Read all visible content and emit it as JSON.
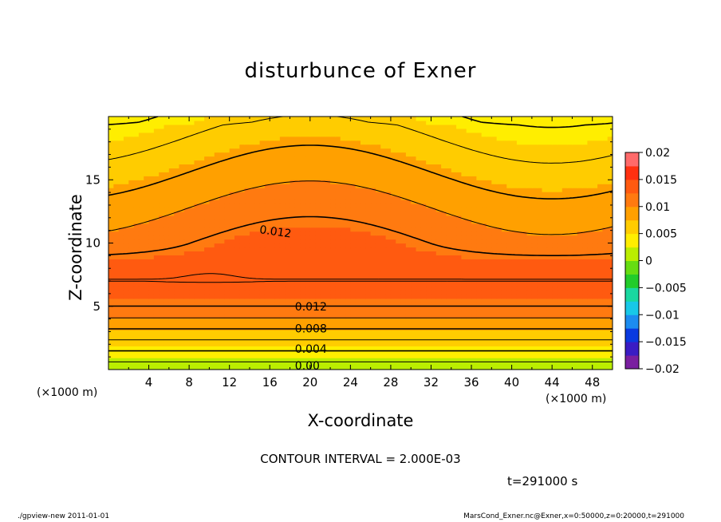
{
  "chart_data": {
    "type": "heatmap",
    "title": "disturbunce of Exner",
    "xlabel": "X-coordinate",
    "ylabel": "Z-coordinate",
    "x_unit_left": "(×1000 m)",
    "x_unit_right": "(×1000 m)",
    "xlim": [
      0,
      50
    ],
    "ylim": [
      0,
      20
    ],
    "x_ticks": [
      4,
      8,
      12,
      16,
      20,
      24,
      28,
      32,
      36,
      40,
      44,
      48
    ],
    "y_ticks": [
      5,
      10,
      15
    ],
    "colorbar": {
      "min": -0.02,
      "max": 0.02,
      "step": 0.0025,
      "tick_values": [
        0.02,
        0.015,
        0.01,
        0.005,
        0,
        -0.005,
        -0.01,
        -0.015,
        -0.02
      ],
      "tick_labels": [
        "0.02",
        "0.015",
        "0.01",
        "0.005",
        "0",
        "−0.005",
        "−0.01",
        "−0.015",
        "−0.02"
      ],
      "colors": [
        "#7a1fa0",
        "#3a1cc4",
        "#0a3ae0",
        "#1c8cf0",
        "#18c8e8",
        "#19d8a0",
        "#22cc2a",
        "#66dd11",
        "#bbee00",
        "#ffee00",
        "#ffcc00",
        "#ffa000",
        "#ff7a10",
        "#ff5a10",
        "#ff3010",
        "#ff6a6a",
        "#ffb0b0"
      ]
    },
    "contour_interval": 0.002,
    "contour_labels": [
      {
        "text": "0.012",
        "x": 15,
        "z": 11.1,
        "angle": 8
      },
      {
        "text": "0.012",
        "x": 18.5,
        "z": 5.0,
        "angle": 0
      },
      {
        "text": "0.008",
        "x": 18.5,
        "z": 3.25,
        "angle": 0
      },
      {
        "text": "0.004",
        "x": 18.5,
        "z": 1.65,
        "angle": 0
      },
      {
        "text": "0.00",
        "x": 18.5,
        "z": 0.3,
        "angle": 0
      }
    ],
    "contour_note": "CONTOUR INTERVAL = 2.000E-03",
    "time_label": "t=291000 s"
  },
  "footer": {
    "left": "./gpview-new   2011-01-01",
    "right": "MarsCond_Exner.nc@Exner,x=0:50000,z=0:20000,t=291000"
  }
}
